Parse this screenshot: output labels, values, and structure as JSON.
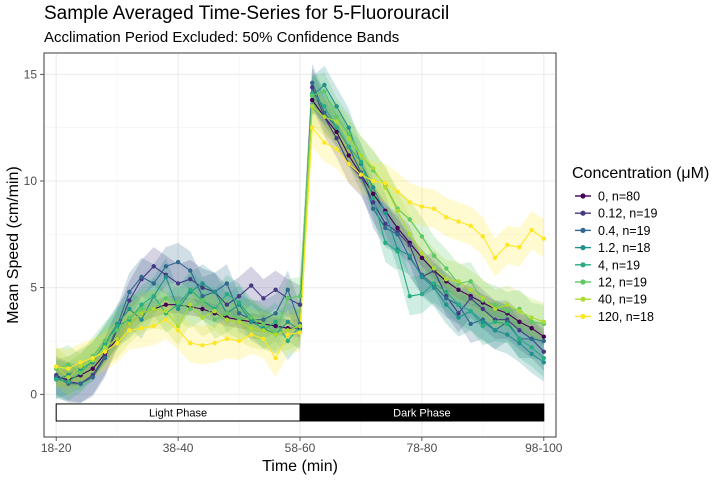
{
  "chart_data": {
    "type": "line",
    "title": "Sample Averaged Time-Series for 5-Fluorouracil",
    "subtitle": "Acclimation Period Excluded: 50% Confidence Bands",
    "xlabel": "Time (min)",
    "ylabel": "Mean Speed (cm/min)",
    "x_tick_labels": [
      "18-20",
      "38-40",
      "58-60",
      "78-80",
      "98-100"
    ],
    "x": [
      19,
      21,
      23,
      25,
      27,
      29,
      31,
      33,
      35,
      37,
      39,
      41,
      43,
      45,
      47,
      49,
      51,
      53,
      55,
      57,
      59,
      61,
      63,
      65,
      67,
      69,
      71,
      73,
      75,
      77,
      79,
      81,
      83,
      85,
      87,
      89,
      91,
      93,
      95,
      97,
      99
    ],
    "xlim": [
      17,
      101
    ],
    "y_ticks": [
      0,
      5,
      10,
      15
    ],
    "ylim": [
      -2,
      16
    ],
    "grid": true,
    "legend_title": "Concentration (μM)",
    "legend_position": "right",
    "phases": [
      {
        "label": "Light Phase",
        "x_start": 19,
        "x_end": 59,
        "fill": "#ffffff",
        "text_color": "#000000"
      },
      {
        "label": "Dark Phase",
        "x_start": 59,
        "x_end": 99,
        "fill": "#000000",
        "text_color": "#ffffff"
      }
    ],
    "series": [
      {
        "name": "0, n=80",
        "color": "#440154",
        "band": 0.4,
        "values": [
          0.8,
          0.7,
          0.9,
          1.2,
          1.9,
          2.6,
          3.3,
          3.8,
          4.0,
          4.2,
          4.2,
          4.1,
          4.0,
          3.8,
          3.6,
          3.5,
          3.4,
          3.3,
          3.2,
          3.1,
          3.1,
          13.8,
          13.0,
          12.3,
          11.2,
          10.3,
          9.4,
          8.6,
          7.8,
          7.1,
          6.4,
          5.8,
          5.3,
          4.9,
          4.6,
          4.3,
          4.0,
          3.8,
          3.4,
          3.1,
          2.7
        ]
      },
      {
        "name": "0.12, n=19",
        "color": "#443983",
        "band": 0.9,
        "values": [
          0.9,
          0.6,
          0.5,
          0.9,
          1.8,
          3.0,
          4.4,
          5.4,
          6.0,
          5.6,
          5.2,
          5.4,
          5.0,
          4.8,
          4.2,
          4.6,
          5.1,
          4.5,
          4.9,
          4.5,
          4.2,
          14.4,
          13.0,
          12.0,
          10.8,
          10.2,
          9.0,
          8.0,
          7.6,
          7.0,
          5.5,
          5.8,
          4.6,
          3.8,
          4.5,
          4.0,
          3.5,
          3.5,
          3.0,
          2.6,
          2.0
        ]
      },
      {
        "name": "0.4, n=19",
        "color": "#31688e",
        "band": 0.9,
        "values": [
          0.8,
          0.5,
          0.5,
          0.8,
          1.7,
          3.2,
          4.8,
          5.5,
          5.2,
          6.0,
          6.2,
          5.8,
          4.6,
          4.8,
          5.2,
          3.8,
          3.5,
          3.5,
          3.8,
          4.9,
          3.3,
          14.6,
          13.2,
          12.5,
          11.6,
          10.4,
          8.7,
          7.8,
          7.5,
          6.4,
          5.6,
          5.1,
          4.5,
          4.2,
          3.3,
          3.5,
          3.0,
          3.4,
          2.6,
          2.6,
          2.5
        ]
      },
      {
        "name": "1.2, n=18",
        "color": "#21918c",
        "band": 0.9,
        "values": [
          0.7,
          0.9,
          1.2,
          1.5,
          2.4,
          3.3,
          4.0,
          3.5,
          4.6,
          5.5,
          4.0,
          4.8,
          5.2,
          4.8,
          3.8,
          4.2,
          3.4,
          3.1,
          2.8,
          3.4,
          3.0,
          14.0,
          14.5,
          13.5,
          12.5,
          10.8,
          9.7,
          8.5,
          6.8,
          6.5,
          5.5,
          5.0,
          4.2,
          3.6,
          3.9,
          3.4,
          3.0,
          2.8,
          2.4,
          1.9,
          1.5
        ]
      },
      {
        "name": "4, n=19",
        "color": "#27ad81",
        "band": 0.9,
        "values": [
          0.7,
          0.6,
          1.0,
          1.6,
          2.3,
          3.2,
          3.5,
          4.2,
          4.6,
          3.8,
          4.2,
          4.9,
          4.4,
          4.0,
          4.7,
          4.3,
          3.6,
          3.0,
          3.4,
          2.5,
          3.2,
          14.1,
          13.5,
          12.5,
          11.6,
          10.9,
          9.2,
          7.1,
          6.7,
          4.6,
          4.7,
          5.2,
          4.8,
          4.2,
          3.9,
          3.2,
          3.4,
          3.3,
          2.6,
          2.2,
          1.7
        ]
      },
      {
        "name": "12, n=19",
        "color": "#5ec962",
        "band": 0.9,
        "values": [
          1.2,
          1.4,
          1.0,
          1.8,
          2.5,
          3.0,
          3.6,
          4.0,
          4.0,
          4.5,
          4.3,
          4.0,
          4.4,
          3.5,
          3.8,
          3.5,
          3.6,
          3.3,
          2.9,
          4.5,
          4.6,
          14.0,
          14.2,
          13.0,
          12.2,
          11.2,
          10.5,
          9.8,
          8.7,
          8.2,
          7.4,
          6.5,
          5.9,
          5.2,
          5.3,
          4.4,
          4.2,
          3.9,
          4.0,
          3.4,
          3.3
        ]
      },
      {
        "name": "40, n=19",
        "color": "#addc30",
        "band": 0.9,
        "values": [
          1.3,
          0.8,
          1.3,
          1.6,
          2.2,
          2.6,
          3.3,
          3.8,
          4.0,
          3.9,
          3.2,
          4.2,
          3.6,
          3.9,
          3.5,
          3.4,
          3.1,
          3.0,
          2.8,
          3.0,
          3.2,
          13.5,
          13.0,
          12.8,
          12.0,
          11.2,
          10.6,
          9.7,
          8.6,
          7.5,
          6.6,
          5.9,
          5.4,
          5.3,
          4.9,
          4.5,
          4.0,
          4.2,
          3.9,
          3.6,
          3.4
        ]
      },
      {
        "name": "120, n=18",
        "color": "#fde725",
        "band": 0.9,
        "values": [
          1.3,
          1.2,
          1.5,
          1.7,
          2.0,
          2.4,
          3.0,
          3.1,
          3.2,
          3.5,
          3.0,
          2.4,
          2.3,
          2.4,
          2.6,
          2.5,
          2.8,
          2.6,
          1.7,
          2.8,
          2.9,
          12.5,
          11.8,
          11.5,
          10.8,
          10.3,
          10.0,
          9.9,
          9.5,
          9.0,
          8.8,
          8.7,
          8.3,
          8.1,
          7.9,
          7.4,
          6.4,
          7.0,
          6.9,
          7.7,
          7.3
        ]
      }
    ]
  }
}
